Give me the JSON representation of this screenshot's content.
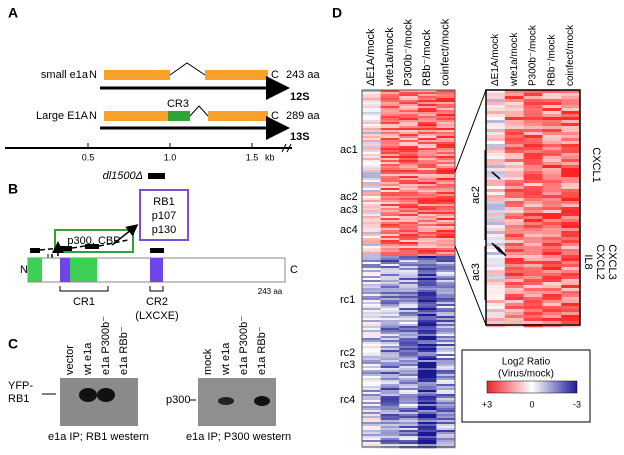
{
  "panels": {
    "a": {
      "label": "A",
      "small": {
        "name": "small e1a",
        "n": "N",
        "c": "C",
        "length": "243 aa",
        "transcript": "12S"
      },
      "large": {
        "name": "Large E1A",
        "n": "N",
        "c": "C",
        "domain": "CR3",
        "length": "289 aa",
        "transcript": "13S"
      },
      "scale": {
        "ticks": [
          "0.5",
          "1.0",
          "1.5"
        ],
        "unit": "kb"
      },
      "deletion": "dl1500Δ"
    },
    "b": {
      "label": "B",
      "partner1": "p300, CBP",
      "partner2": [
        "RB1",
        "p107",
        "p130"
      ],
      "n": "N",
      "c": "C",
      "length": "243 aa",
      "cr1": "CR1",
      "cr2": "CR2",
      "motif": "(LXCXE)"
    },
    "c": {
      "label": "C",
      "blot1": {
        "lanes": [
          "vector",
          "wt e1a",
          "e1a P300b⁻",
          "e1a RBb⁻"
        ],
        "band": [
          "YFP-",
          "RB1"
        ],
        "caption": "e1a IP; RB1 western"
      },
      "blot2": {
        "lanes": [
          "mock",
          "wt e1a",
          "e1a P300b⁻",
          "e1a RBb⁻"
        ],
        "band": "p300",
        "caption": "e1a IP; P300 western"
      }
    },
    "d": {
      "label": "D",
      "columns": [
        "ΔE1A/mock",
        "wte1a/mock",
        "P300b⁻/mock",
        "RBb⁻/mock",
        "coinfect/mock"
      ],
      "clusters": [
        "ac1",
        "ac2",
        "ac3",
        "ac4",
        "rc1",
        "rc2",
        "rc3",
        "rc4"
      ],
      "zoom_columns": [
        "ΔE1A/mock",
        "wte1a/mock",
        "P300b⁻/mock",
        "RBb⁻/mock",
        "coinfect/mock"
      ],
      "zoom_clusters": [
        "ac2",
        "ac3"
      ],
      "genes": [
        "CXCL1",
        "IL8",
        "CXCL2",
        "CXCL3"
      ],
      "legend": {
        "title": [
          "Log2 Ratio",
          "(Virus/mock)"
        ],
        "ticks": [
          "+3",
          "0",
          "-3"
        ]
      }
    }
  }
}
